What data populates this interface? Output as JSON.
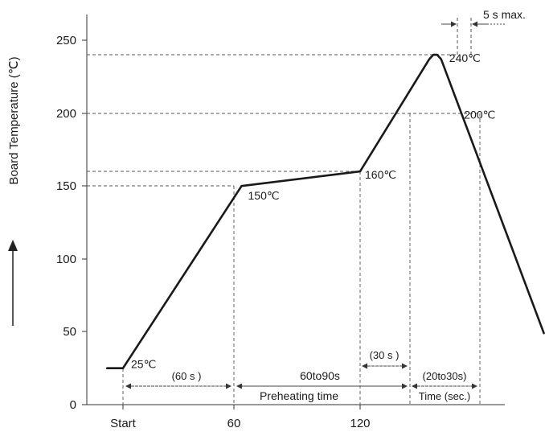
{
  "chart_data": {
    "type": "line",
    "title": "",
    "ylabel": "Board Temperature (℃)",
    "xlabel": "",
    "ylim": [
      0,
      260
    ],
    "yticks": [
      "0",
      "50",
      "100",
      "150",
      "200",
      "250"
    ],
    "xticks": [
      {
        "x": 0,
        "label": "Start"
      },
      {
        "x": 60,
        "label": "60"
      },
      {
        "x": 120,
        "label": "120"
      }
    ],
    "series": [
      {
        "points": [
          {
            "x": -8,
            "y": 25
          },
          {
            "x": 0,
            "y": 25
          },
          {
            "x": 60,
            "y": 150
          },
          {
            "x": 120,
            "y": 160
          },
          {
            "x": 155,
            "y": 237
          },
          {
            "x": 157,
            "y": 240
          },
          {
            "x": 159,
            "y": 240
          },
          {
            "x": 161,
            "y": 237
          },
          {
            "x": 213,
            "y": 49
          }
        ]
      }
    ],
    "point_labels": [
      {
        "x": 0,
        "y": 25,
        "text": "25℃"
      },
      {
        "x": 60,
        "y": 150,
        "text": "150℃"
      },
      {
        "x": 120,
        "y": 160,
        "text": "160℃"
      },
      {
        "x": 161,
        "y": 240,
        "text": "240℃"
      },
      {
        "x": 162,
        "y": 200,
        "text": "200℃"
      }
    ],
    "annotations": {
      "five_s_max": "5 s max.",
      "sixty_s": "(60 s )",
      "sixty_to_ninety": "60to90s",
      "preheating_time": "Preheating time",
      "thirty_s": "(30 s )",
      "twenty_to_thirty": "(20to30s)",
      "time_sec": "Time (sec.)"
    }
  }
}
